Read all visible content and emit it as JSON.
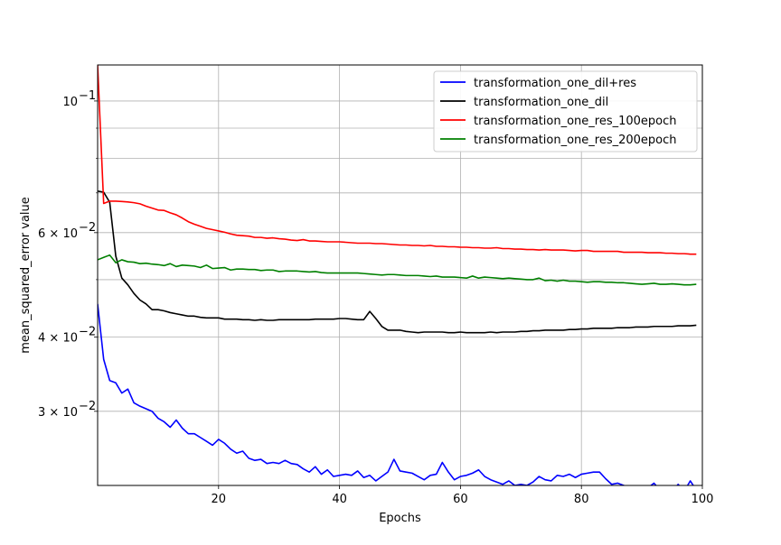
{
  "chart_data": {
    "type": "line",
    "xlabel": "Epochs",
    "ylabel": "mean_squared_error value",
    "xlim": [
      0,
      100
    ],
    "ylim": [
      0.0225,
      0.115
    ],
    "yscale": "log",
    "grid": true,
    "legend_position": "top-right",
    "xticks": [
      20,
      40,
      60,
      80,
      100
    ],
    "yticks": [
      {
        "value": 0.1,
        "base": "10",
        "exp": "−1"
      },
      {
        "value": 0.06,
        "base": "6 × 10",
        "exp": "−2"
      },
      {
        "value": 0.04,
        "base": "4 × 10",
        "exp": "−2"
      },
      {
        "value": 0.03,
        "base": "3 × 10",
        "exp": "−2"
      }
    ],
    "yminor_ticks": [
      0.05,
      0.07,
      0.08,
      0.09
    ],
    "series": [
      {
        "name": "transformation_one_dil+res",
        "color": "#0000ff",
        "x": [
          0,
          1,
          2,
          3,
          4,
          5,
          6,
          7,
          8,
          9,
          10,
          11,
          12,
          13,
          14,
          15,
          16,
          17,
          18,
          19,
          20,
          21,
          22,
          23,
          24,
          25,
          26,
          27,
          28,
          29,
          30,
          31,
          32,
          33,
          34,
          35,
          36,
          37,
          38,
          39,
          40,
          41,
          42,
          43,
          44,
          45,
          46,
          47,
          48,
          49,
          50,
          51,
          52,
          53,
          54,
          55,
          56,
          57,
          58,
          59,
          60,
          61,
          62,
          63,
          64,
          65,
          66,
          67,
          68,
          69,
          70,
          71,
          72,
          73,
          74,
          75,
          76,
          77,
          78,
          79,
          80,
          81,
          82,
          83,
          84,
          85,
          86,
          87,
          88,
          89,
          90,
          91,
          92,
          93,
          94,
          95,
          96,
          97,
          98,
          99
        ],
        "values": [
          0.0455,
          0.0367,
          0.0338,
          0.0335,
          0.0322,
          0.0327,
          0.031,
          0.0306,
          0.0303,
          0.03,
          0.0292,
          0.0288,
          0.0282,
          0.029,
          0.0281,
          0.0275,
          0.0275,
          0.0271,
          0.0267,
          0.0263,
          0.0269,
          0.0265,
          0.0259,
          0.0255,
          0.0257,
          0.025,
          0.0248,
          0.0249,
          0.0245,
          0.0246,
          0.0245,
          0.0248,
          0.0245,
          0.0244,
          0.024,
          0.0237,
          0.0242,
          0.0235,
          0.0239,
          0.0233,
          0.0234,
          0.0235,
          0.0234,
          0.0238,
          0.0232,
          0.0234,
          0.0229,
          0.0233,
          0.0237,
          0.0249,
          0.0238,
          0.0237,
          0.0236,
          0.0233,
          0.023,
          0.0234,
          0.0235,
          0.0246,
          0.0237,
          0.023,
          0.0233,
          0.0234,
          0.0236,
          0.0239,
          0.0233,
          0.023,
          0.0228,
          0.0226,
          0.0229,
          0.0225,
          0.0226,
          0.0225,
          0.0228,
          0.0233,
          0.023,
          0.0229,
          0.0234,
          0.0233,
          0.0235,
          0.0232,
          0.0235,
          0.0236,
          0.0237,
          0.0237,
          0.0231,
          0.0226,
          0.0227,
          0.0225,
          0.0223,
          0.0223,
          0.0224,
          0.0223,
          0.0227,
          0.0221,
          0.0221,
          0.022,
          0.0226,
          0.022,
          0.0229,
          0.0221
        ]
      },
      {
        "name": "transformation_one_dil",
        "color": "#000000",
        "x": [
          0,
          1,
          2,
          3,
          4,
          5,
          6,
          7,
          8,
          9,
          10,
          11,
          12,
          13,
          14,
          15,
          16,
          17,
          18,
          19,
          20,
          21,
          22,
          23,
          24,
          25,
          26,
          27,
          28,
          29,
          30,
          31,
          32,
          33,
          34,
          35,
          36,
          37,
          38,
          39,
          40,
          41,
          42,
          43,
          44,
          45,
          46,
          47,
          48,
          49,
          50,
          51,
          52,
          53,
          54,
          55,
          56,
          57,
          58,
          59,
          60,
          61,
          62,
          63,
          64,
          65,
          66,
          67,
          68,
          69,
          70,
          71,
          72,
          73,
          74,
          75,
          76,
          77,
          78,
          79,
          80,
          81,
          82,
          83,
          84,
          85,
          86,
          87,
          88,
          89,
          90,
          91,
          92,
          93,
          94,
          95,
          96,
          97,
          98,
          99
        ],
        "values": [
          0.0705,
          0.0702,
          0.0675,
          0.0548,
          0.0503,
          0.049,
          0.0474,
          0.0462,
          0.0455,
          0.0445,
          0.0445,
          0.0443,
          0.044,
          0.0438,
          0.0436,
          0.0434,
          0.0434,
          0.0432,
          0.0431,
          0.0431,
          0.0431,
          0.0429,
          0.0429,
          0.0429,
          0.0428,
          0.0428,
          0.0427,
          0.0428,
          0.0427,
          0.0427,
          0.0428,
          0.0428,
          0.0428,
          0.0428,
          0.0428,
          0.0428,
          0.0429,
          0.0429,
          0.0429,
          0.0429,
          0.043,
          0.043,
          0.0429,
          0.0428,
          0.0428,
          0.0442,
          0.043,
          0.0417,
          0.0411,
          0.0411,
          0.0411,
          0.0409,
          0.0408,
          0.0407,
          0.0408,
          0.0408,
          0.0408,
          0.0408,
          0.0407,
          0.0407,
          0.0408,
          0.0407,
          0.0407,
          0.0407,
          0.0407,
          0.0408,
          0.0407,
          0.0408,
          0.0408,
          0.0408,
          0.0409,
          0.0409,
          0.041,
          0.041,
          0.0411,
          0.0411,
          0.0411,
          0.0411,
          0.0412,
          0.0412,
          0.0413,
          0.0413,
          0.0414,
          0.0414,
          0.0414,
          0.0414,
          0.0415,
          0.0415,
          0.0415,
          0.0416,
          0.0416,
          0.0416,
          0.0417,
          0.0417,
          0.0417,
          0.0417,
          0.0418,
          0.0418,
          0.0418,
          0.0419
        ]
      },
      {
        "name": "transformation_one_res_100epoch",
        "color": "#ff0000",
        "x": [
          0,
          1,
          2,
          3,
          4,
          5,
          6,
          7,
          8,
          9,
          10,
          11,
          12,
          13,
          14,
          15,
          16,
          17,
          18,
          19,
          20,
          21,
          22,
          23,
          24,
          25,
          26,
          27,
          28,
          29,
          30,
          31,
          32,
          33,
          34,
          35,
          36,
          37,
          38,
          39,
          40,
          41,
          42,
          43,
          44,
          45,
          46,
          47,
          48,
          49,
          50,
          51,
          52,
          53,
          54,
          55,
          56,
          57,
          58,
          59,
          60,
          61,
          62,
          63,
          64,
          65,
          66,
          67,
          68,
          69,
          70,
          71,
          72,
          73,
          74,
          75,
          76,
          77,
          78,
          79,
          80,
          81,
          82,
          83,
          84,
          85,
          86,
          87,
          88,
          89,
          90,
          91,
          92,
          93,
          94,
          95,
          96,
          97,
          98,
          99
        ],
        "values": [
          0.115,
          0.0672,
          0.0678,
          0.0678,
          0.0677,
          0.0676,
          0.0674,
          0.0671,
          0.0665,
          0.066,
          0.0655,
          0.0654,
          0.0648,
          0.0643,
          0.0635,
          0.0626,
          0.062,
          0.0615,
          0.061,
          0.0607,
          0.0604,
          0.0601,
          0.0597,
          0.0594,
          0.0593,
          0.0592,
          0.0589,
          0.0589,
          0.0587,
          0.0588,
          0.0586,
          0.0585,
          0.0583,
          0.0582,
          0.0584,
          0.0581,
          0.0581,
          0.058,
          0.0579,
          0.0579,
          0.0579,
          0.0578,
          0.0577,
          0.0576,
          0.0576,
          0.0576,
          0.0575,
          0.0575,
          0.0574,
          0.0573,
          0.0572,
          0.0572,
          0.0571,
          0.0571,
          0.057,
          0.0571,
          0.0569,
          0.0569,
          0.0568,
          0.0568,
          0.0567,
          0.0567,
          0.0566,
          0.0566,
          0.0565,
          0.0565,
          0.0566,
          0.0564,
          0.0564,
          0.0563,
          0.0563,
          0.0562,
          0.0562,
          0.0561,
          0.0562,
          0.0561,
          0.0561,
          0.0561,
          0.056,
          0.0559,
          0.056,
          0.056,
          0.0558,
          0.0558,
          0.0558,
          0.0558,
          0.0558,
          0.0556,
          0.0556,
          0.0556,
          0.0556,
          0.0555,
          0.0555,
          0.0555,
          0.0554,
          0.0554,
          0.0553,
          0.0553,
          0.0552,
          0.0552
        ]
      },
      {
        "name": "transformation_one_res_200epoch",
        "color": "#008000",
        "x": [
          0,
          1,
          2,
          3,
          4,
          5,
          6,
          7,
          8,
          9,
          10,
          11,
          12,
          13,
          14,
          15,
          16,
          17,
          18,
          19,
          20,
          21,
          22,
          23,
          24,
          25,
          26,
          27,
          28,
          29,
          30,
          31,
          32,
          33,
          34,
          35,
          36,
          37,
          38,
          39,
          40,
          41,
          42,
          43,
          44,
          45,
          46,
          47,
          48,
          49,
          50,
          51,
          52,
          53,
          54,
          55,
          56,
          57,
          58,
          59,
          60,
          61,
          62,
          63,
          64,
          65,
          66,
          67,
          68,
          69,
          70,
          71,
          72,
          73,
          74,
          75,
          76,
          77,
          78,
          79,
          80,
          81,
          82,
          83,
          84,
          85,
          86,
          87,
          88,
          89,
          90,
          91,
          92,
          93,
          94,
          95,
          96,
          97,
          98,
          99
        ],
        "values": [
          0.054,
          0.0545,
          0.055,
          0.0534,
          0.054,
          0.0536,
          0.0535,
          0.0532,
          0.0533,
          0.0531,
          0.053,
          0.0528,
          0.0532,
          0.0526,
          0.0529,
          0.0528,
          0.0527,
          0.0524,
          0.0529,
          0.0522,
          0.0523,
          0.0524,
          0.0519,
          0.0521,
          0.0521,
          0.052,
          0.052,
          0.0518,
          0.0519,
          0.0519,
          0.0516,
          0.0517,
          0.0517,
          0.0517,
          0.0516,
          0.0515,
          0.0516,
          0.0514,
          0.0513,
          0.0513,
          0.0513,
          0.0513,
          0.0513,
          0.0513,
          0.0512,
          0.0511,
          0.051,
          0.0509,
          0.051,
          0.051,
          0.0509,
          0.0508,
          0.0508,
          0.0508,
          0.0507,
          0.0506,
          0.0507,
          0.0505,
          0.0505,
          0.0505,
          0.0504,
          0.0503,
          0.0507,
          0.0503,
          0.0505,
          0.0504,
          0.0503,
          0.0502,
          0.0503,
          0.0502,
          0.0501,
          0.05,
          0.05,
          0.0503,
          0.0498,
          0.0499,
          0.0497,
          0.0499,
          0.0497,
          0.0497,
          0.0496,
          0.0495,
          0.0496,
          0.0496,
          0.0495,
          0.0495,
          0.0494,
          0.0494,
          0.0493,
          0.0492,
          0.0491,
          0.0492,
          0.0493,
          0.0491,
          0.0491,
          0.0492,
          0.0491,
          0.049,
          0.049,
          0.0491
        ]
      }
    ]
  }
}
